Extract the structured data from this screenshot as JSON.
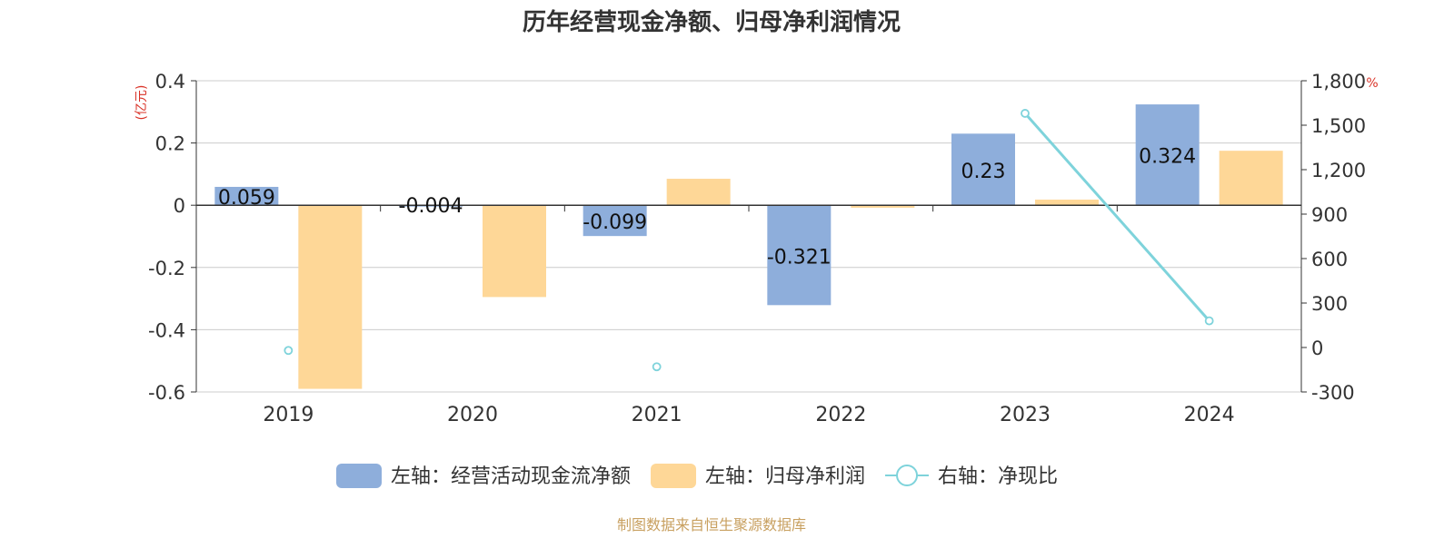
{
  "chart_data": {
    "type": "bar",
    "title": "历年经营现金净额、归母净利润情况",
    "left_axis_unit": "(亿元)",
    "right_axis_unit": "%",
    "categories": [
      "2019",
      "2020",
      "2021",
      "2022",
      "2023",
      "2024"
    ],
    "series": [
      {
        "name": "左轴：经营活动现金流净额",
        "axis": "left",
        "kind": "bar",
        "color": "#8EAEDB",
        "values": [
          0.059,
          -0.004,
          -0.099,
          -0.321,
          0.23,
          0.324
        ],
        "labels": [
          "0.059",
          "-0.004",
          "-0.099",
          "-0.321",
          "0.23",
          "0.324"
        ]
      },
      {
        "name": "左轴：归母净利润",
        "axis": "left",
        "kind": "bar",
        "color": "#FED797",
        "values": [
          -0.59,
          -0.295,
          0.085,
          -0.008,
          0.018,
          0.175
        ]
      },
      {
        "name": "右轴：净现比",
        "axis": "right",
        "kind": "line",
        "color": "#7ED3DB",
        "values": [
          -20,
          null,
          -130,
          null,
          1580,
          180
        ]
      }
    ],
    "left_ylim": [
      -0.6,
      0.4
    ],
    "left_ticks": [
      "0.4",
      "0.2",
      "0",
      "-0.2",
      "-0.4",
      "-0.6"
    ],
    "right_ylim": [
      -300,
      1800
    ],
    "right_ticks": [
      "1,800",
      "1,500",
      "1,200",
      "900",
      "600",
      "300",
      "0",
      "-300"
    ],
    "grid": true,
    "legend_position": "bottom"
  },
  "source_note": "制图数据来自恒生聚源数据库"
}
